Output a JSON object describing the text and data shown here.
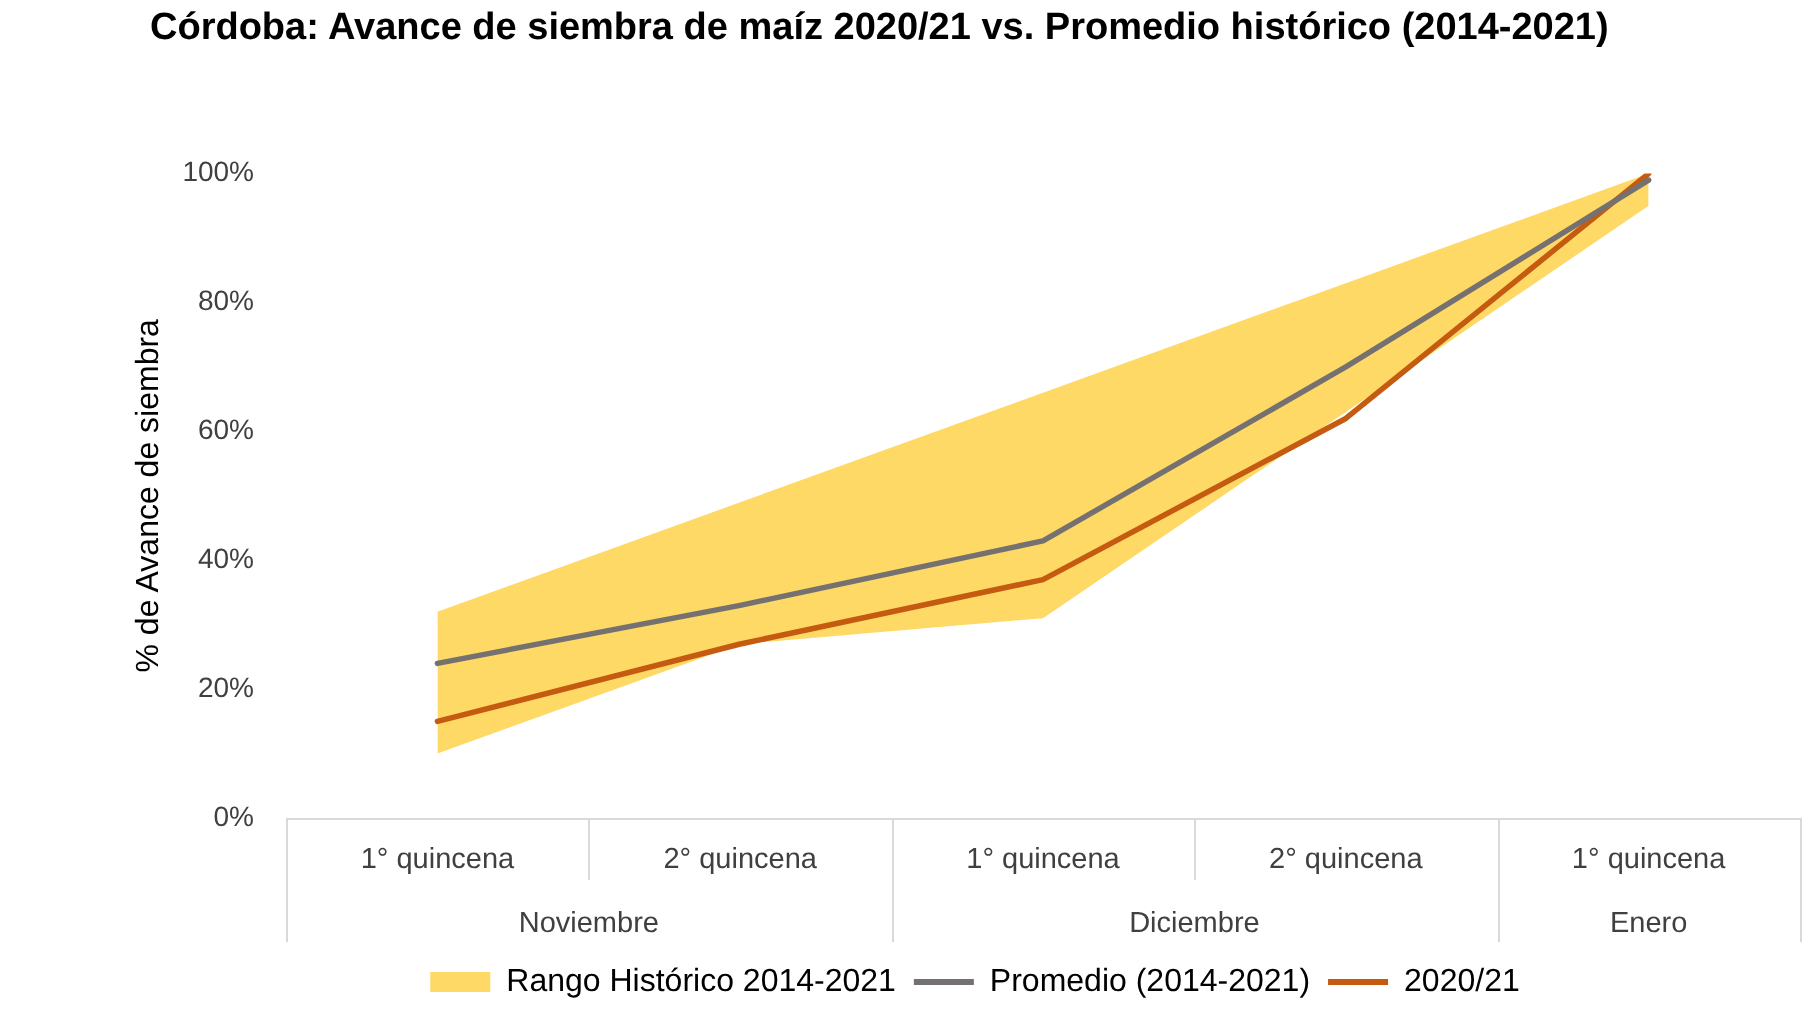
{
  "chart_data": {
    "type": "line",
    "title": "Córdoba: Avance de siembra de maíz 2020/21 vs. Promedio histórico (2014-2021)",
    "ylabel": "% de Avance de siembra",
    "categories": [
      "1° quincena",
      "2° quincena",
      "1° quincena",
      "2° quincena",
      "1° quincena"
    ],
    "annotations": [
      "Noviembre",
      "Diciembre",
      "Enero"
    ],
    "series": [
      {
        "name": "Rango Histórico 2014-2021",
        "type": "area",
        "color": "#ffd966",
        "values": [
          null,
          null,
          null,
          null,
          null
        ],
        "lower": [
          10,
          27,
          31,
          63,
          95
        ],
        "upper": [
          32,
          49,
          66,
          83,
          100
        ]
      },
      {
        "name": "Promedio (2014-2021)",
        "type": "line",
        "color": "#767171",
        "values": [
          24,
          33,
          43,
          70,
          99
        ]
      },
      {
        "name": "2020/21",
        "type": "line",
        "color": "#c55a11",
        "values": [
          15,
          27,
          37,
          62,
          100
        ]
      }
    ],
    "ylim": [
      0,
      100
    ],
    "yticks": [
      {
        "value": 0,
        "label": "0%"
      },
      {
        "value": 20,
        "label": "20%"
      },
      {
        "value": 40,
        "label": "40%"
      },
      {
        "value": 60,
        "label": "60%"
      },
      {
        "value": 80,
        "label": "80%"
      },
      {
        "value": 100,
        "label": "100%"
      }
    ],
    "grid": false,
    "legend": "bottom",
    "marker": "none",
    "line_style": "solid"
  }
}
